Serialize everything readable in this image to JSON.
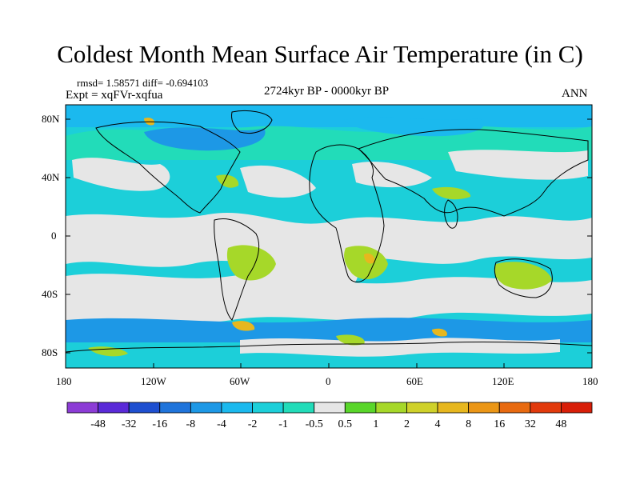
{
  "title": "Coldest Month Mean Surface Air Temperature (in C)",
  "stats": "rmsd= 1.58571  diff= -0.694103",
  "expt": "Expt = xqFVr-xqfua",
  "period": "2724kyr BP - 0000kyr BP",
  "season": "ANN",
  "lat_labels": [
    "80N",
    "40N",
    "0",
    "40S",
    "80S"
  ],
  "lon_labels": [
    "180",
    "120W",
    "60W",
    "0",
    "60E",
    "120E",
    "180"
  ],
  "colorbar": {
    "labels": [
      "-48",
      "-32",
      "-16",
      "-8",
      "-4",
      "-2",
      "-1",
      "-0.5",
      "0.5",
      "1",
      "2",
      "4",
      "8",
      "16",
      "32",
      "48"
    ],
    "colors": [
      "#8c3cd6",
      "#5a2ad8",
      "#1e4fd0",
      "#1f74db",
      "#1d98e6",
      "#1bb9ee",
      "#1ccfd9",
      "#22dcb9",
      "#e6e6e6",
      "#59d62a",
      "#a6d829",
      "#cfd12a",
      "#e7b71e",
      "#eb9616",
      "#e86a10",
      "#e23a0c",
      "#d81e08"
    ]
  },
  "palette": {
    "neutral": "#e6e6e6",
    "light_cool": "#22dcb9",
    "cool": "#1ccfd9",
    "blue": "#1bb9ee",
    "deep_blue": "#1d98e6",
    "warm": "#a6d829",
    "orange": "#e7b71e",
    "red": "#e86a10"
  }
}
